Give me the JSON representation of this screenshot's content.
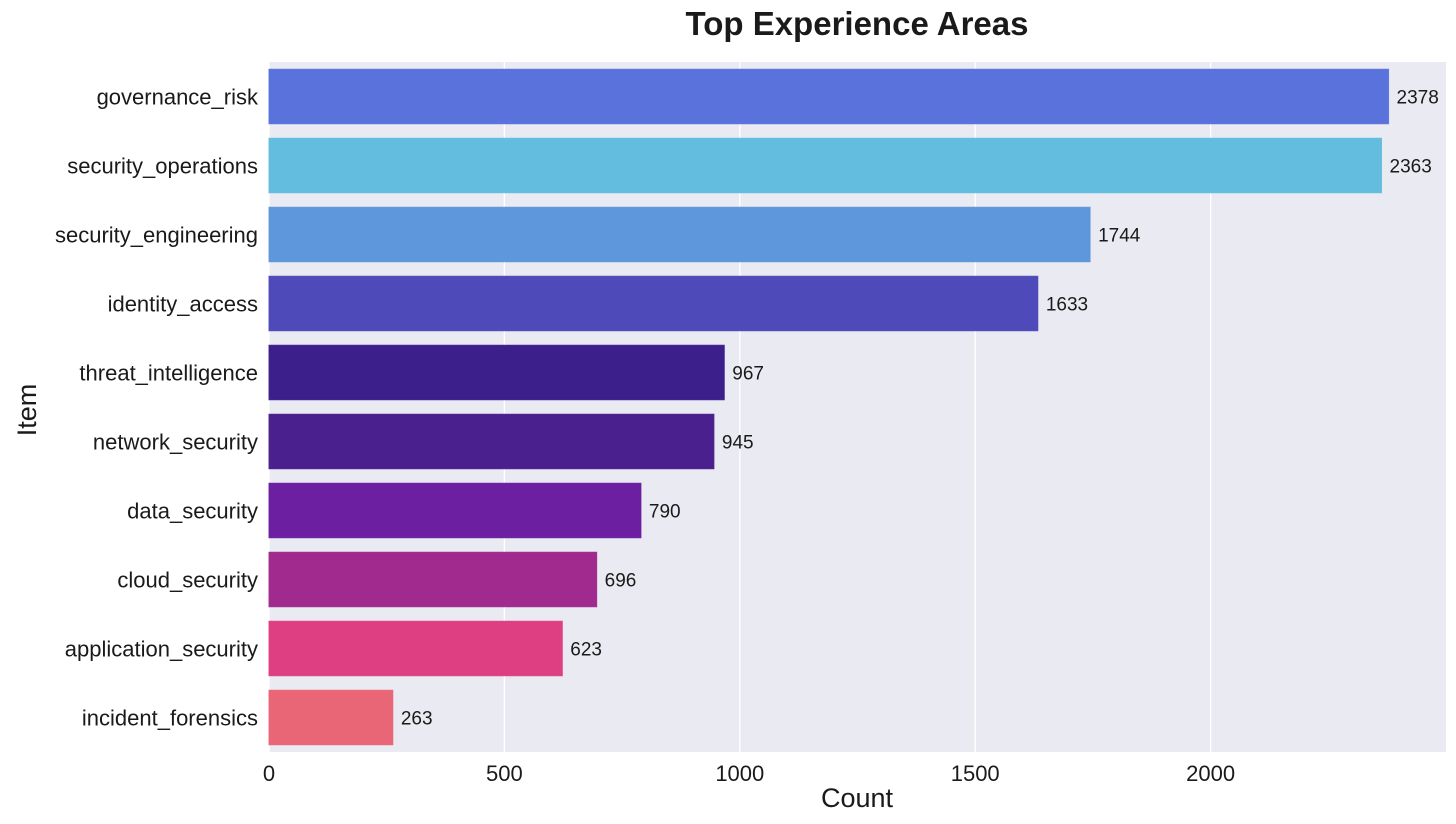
{
  "chart_data": {
    "type": "bar",
    "orientation": "horizontal",
    "title": "Top Experience Areas",
    "xlabel": "Count",
    "ylabel": "Item",
    "xlim": [
      0,
      2500
    ],
    "xticks": [
      "0",
      "500",
      "1000",
      "1500",
      "2000"
    ],
    "grid": true,
    "categories": [
      "governance_risk",
      "security_operations",
      "security_engineering",
      "identity_access",
      "threat_intelligence",
      "network_security",
      "data_security",
      "cloud_security",
      "application_security",
      "incident_forensics"
    ],
    "values": [
      2378,
      2363,
      1744,
      1633,
      967,
      945,
      790,
      696,
      623,
      263
    ],
    "colors": [
      "#5A72DB",
      "#62BDDF",
      "#5E97DB",
      "#4F4ABA",
      "#3D1F8C",
      "#4A208F",
      "#6C1FA0",
      "#A02A8E",
      "#DE3F82",
      "#E96677"
    ],
    "plot_background": "#EAEAF2",
    "grid_color": "#FFFFFF"
  }
}
